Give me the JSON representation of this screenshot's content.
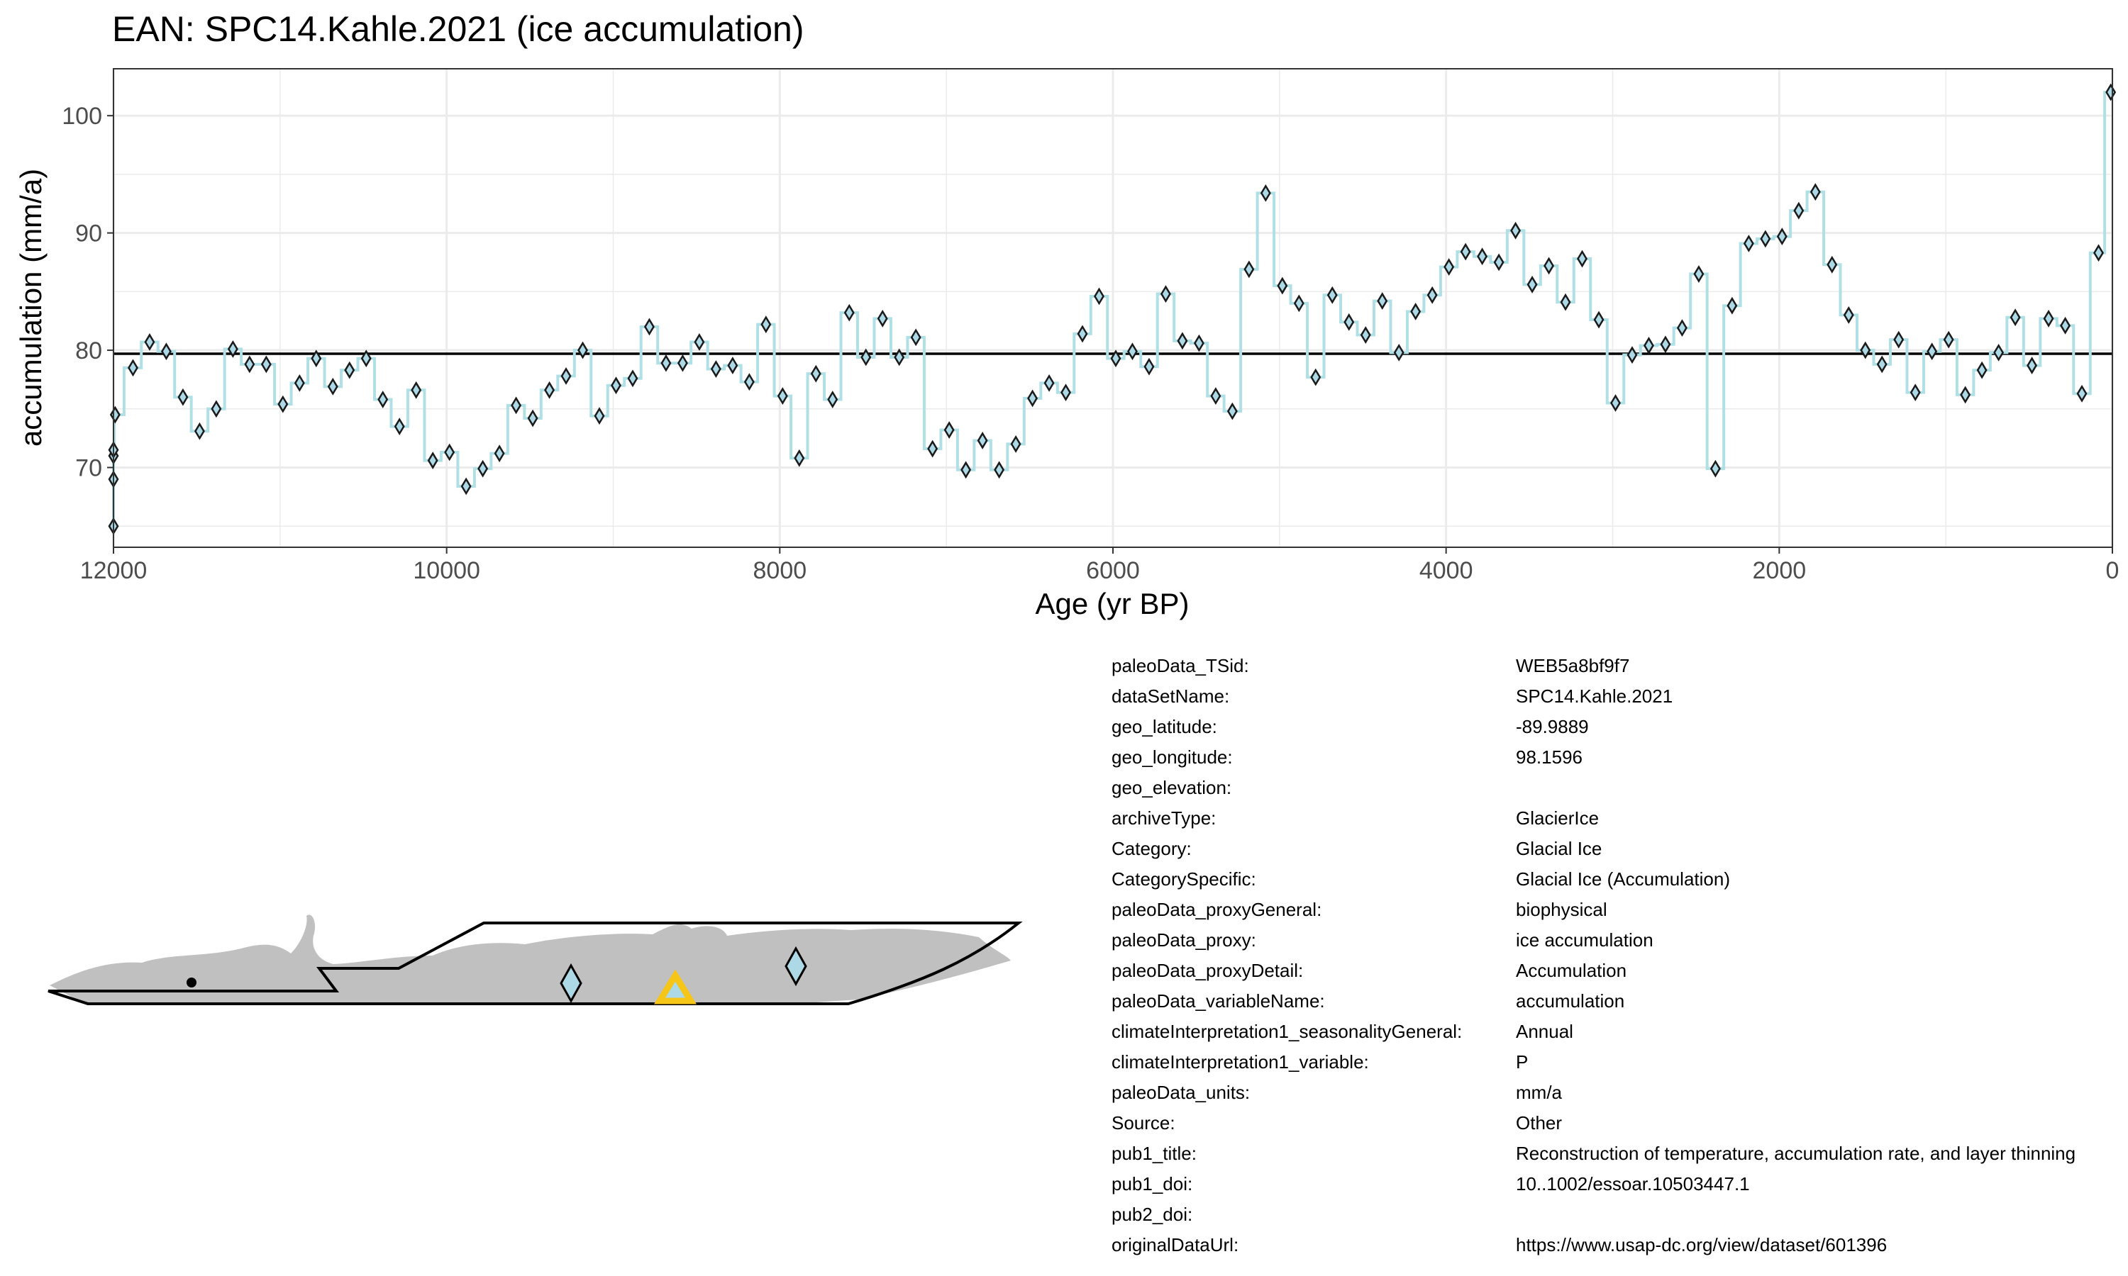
{
  "colors": {
    "line": "#b0e0e6",
    "marker_fill": "#add8e6",
    "marker_stroke": "#1a1a1a",
    "mean_line": "#000000",
    "grid": "#ebebeb",
    "land": "#c0c0c0",
    "site": "#f5c518"
  },
  "chart_data": {
    "type": "line",
    "title": "EAN: SPC14.Kahle.2021 (ice accumulation)",
    "xlabel": "Age (yr BP)",
    "ylabel": "accumulation (mm/a)",
    "xlim": [
      12000,
      0
    ],
    "ylim": [
      63.2,
      104
    ],
    "x_ticks": [
      12000,
      10000,
      8000,
      6000,
      4000,
      2000,
      0
    ],
    "y_ticks": [
      70,
      80,
      90,
      100
    ],
    "grid": true,
    "mean": 79.7,
    "series": [
      {
        "x": [
          12000,
          12000,
          12000,
          12000,
          11990,
          11883,
          11783,
          11683,
          11583,
          11483,
          11383,
          11283,
          11183,
          11083,
          10983,
          10883,
          10783,
          10683,
          10583,
          10483,
          10383,
          10283,
          10183,
          10083,
          9983,
          9883,
          9783,
          9683,
          9583,
          9483,
          9383,
          9283,
          9183,
          9083,
          8983,
          8883,
          8783,
          8683,
          8583,
          8483,
          8383,
          8283,
          8183,
          8083,
          7983,
          7883,
          7783,
          7683,
          7583,
          7483,
          7383,
          7283,
          7183,
          7083,
          6983,
          6883,
          6783,
          6683,
          6583,
          6483,
          6383,
          6283,
          6183,
          6083,
          5983,
          5883,
          5783,
          5683,
          5583,
          5483,
          5383,
          5283,
          5183,
          5083,
          4983,
          4883,
          4783,
          4683,
          4583,
          4483,
          4383,
          4283,
          4183,
          4083,
          3983,
          3883,
          3783,
          3683,
          3583,
          3483,
          3383,
          3283,
          3183,
          3083,
          2983,
          2883,
          2783,
          2683,
          2583,
          2483,
          2383,
          2283,
          2183,
          2083,
          1983,
          1883,
          1783,
          1683,
          1583,
          1483,
          1383,
          1283,
          1183,
          1083,
          983,
          883,
          783,
          683,
          583,
          483,
          383,
          283,
          183,
          83,
          10
        ],
        "values": [
          65,
          69,
          71,
          71.5,
          74.5,
          78.5,
          80.7,
          79.9,
          76,
          73.1,
          75,
          80.1,
          78.8,
          78.8,
          75.4,
          77.2,
          79.3,
          76.9,
          78.3,
          79.3,
          75.8,
          73.5,
          76.6,
          70.6,
          71.3,
          68.4,
          69.9,
          71.2,
          75.3,
          74.2,
          76.6,
          77.8,
          80,
          74.4,
          77,
          77.6,
          82,
          78.9,
          78.9,
          80.7,
          78.4,
          78.7,
          77.3,
          82.2,
          76.1,
          70.8,
          78,
          75.8,
          83.2,
          79.4,
          82.7,
          79.4,
          81.1,
          71.6,
          73.2,
          69.8,
          72.3,
          69.8,
          72,
          75.9,
          77.2,
          76.4,
          81.4,
          84.6,
          79.3,
          79.9,
          78.6,
          84.8,
          80.8,
          80.6,
          76.1,
          74.8,
          86.9,
          93.4,
          85.5,
          84,
          77.7,
          84.7,
          82.4,
          81.3,
          84.2,
          79.8,
          83.3,
          84.7,
          87.1,
          88.4,
          88,
          87.5,
          90.2,
          85.6,
          87.2,
          84.1,
          87.8,
          82.6,
          75.5,
          79.6,
          80.4,
          80.5,
          81.9,
          86.5,
          69.9,
          83.8,
          89.1,
          89.5,
          89.7,
          91.9,
          93.5,
          87.3,
          83,
          80,
          78.8,
          80.9,
          76.4,
          79.9,
          80.9,
          76.2,
          78.3,
          79.8,
          82.8,
          78.7,
          82.7,
          82.1,
          76.3,
          88.3,
          102
        ]
      }
    ]
  },
  "map": {
    "label": ""
  },
  "metadata": [
    {
      "key": "paleoData_TSid:",
      "value": "WEB5a8bf9f7"
    },
    {
      "key": "dataSetName:",
      "value": "SPC14.Kahle.2021"
    },
    {
      "key": "geo_latitude:",
      "value": "-89.9889"
    },
    {
      "key": "geo_longitude:",
      "value": "98.1596"
    },
    {
      "key": "geo_elevation:",
      "value": ""
    },
    {
      "key": "archiveType:",
      "value": "GlacierIce"
    },
    {
      "key": "Category:",
      "value": "Glacial Ice"
    },
    {
      "key": "CategorySpecific:",
      "value": "Glacial Ice (Accumulation)"
    },
    {
      "key": "paleoData_proxyGeneral:",
      "value": "biophysical"
    },
    {
      "key": "paleoData_proxy:",
      "value": "ice accumulation"
    },
    {
      "key": "paleoData_proxyDetail:",
      "value": "Accumulation"
    },
    {
      "key": "paleoData_variableName:",
      "value": "accumulation"
    },
    {
      "key": "climateInterpretation1_seasonalityGeneral:",
      "value": "Annual"
    },
    {
      "key": "climateInterpretation1_variable:",
      "value": "P"
    },
    {
      "key": "paleoData_units:",
      "value": "mm/a"
    },
    {
      "key": "Source:",
      "value": "Other"
    },
    {
      "key": "pub1_title:",
      "value": "Reconstruction of temperature, accumulation rate, and layer thinning"
    },
    {
      "key": "pub1_doi:",
      "value": "10..1002/essoar.10503447.1"
    },
    {
      "key": "pub2_doi:",
      "value": ""
    },
    {
      "key": "originalDataUrl:",
      "value": "https://www.usap-dc.org/view/dataset/601396"
    }
  ]
}
